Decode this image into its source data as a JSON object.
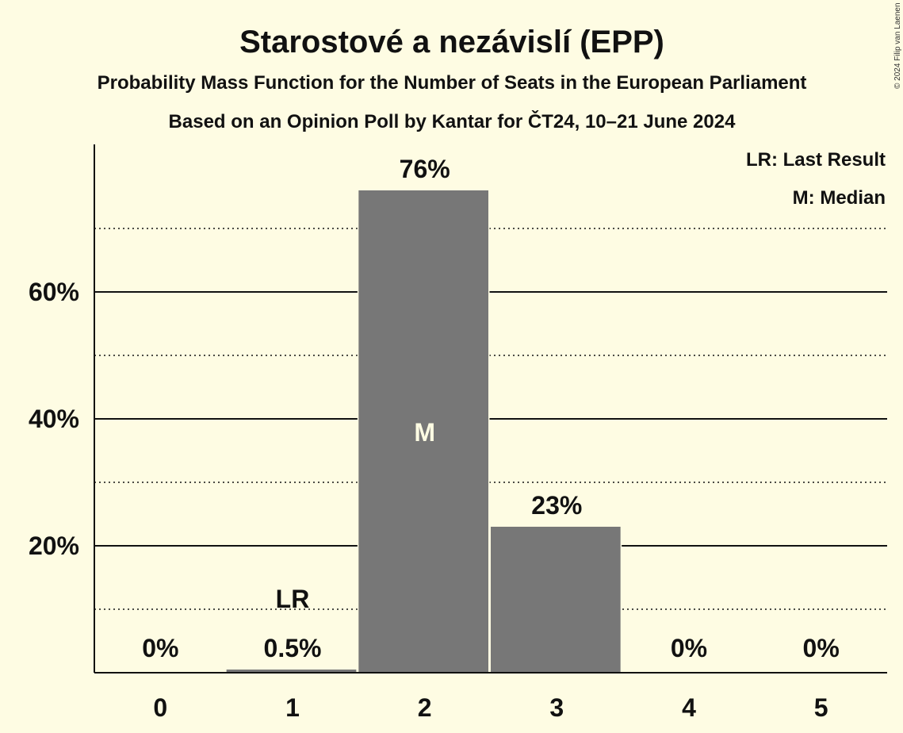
{
  "title": "Starostové a nezávislí (EPP)",
  "subtitle1": "Probability Mass Function for the Number of Seats in the European Parliament",
  "subtitle2": "Based on an Opinion Poll by Kantar for ČT24, 10–21 June 2024",
  "copyright": "© 2024 Filip van Laenen",
  "legend": {
    "last_result": "LR: Last Result",
    "median": "M: Median"
  },
  "colors": {
    "background": "#fefce3",
    "bar": "#777777",
    "text": "#111111",
    "median_marker": "#fefce3"
  },
  "chart_data": {
    "type": "bar",
    "categories": [
      "0",
      "1",
      "2",
      "3",
      "4",
      "5"
    ],
    "values": [
      0,
      0.5,
      76,
      23,
      0,
      0
    ],
    "data_labels": [
      "0%",
      "0.5%",
      "76%",
      "23%",
      "0%",
      "0%"
    ],
    "ylim": [
      0,
      83
    ],
    "yticks": [
      20,
      40,
      60
    ],
    "ytick_labels": [
      "20%",
      "40%",
      "60%"
    ],
    "minor_gridlines": [
      10,
      30,
      50,
      70
    ],
    "last_result_category": "1",
    "last_result_label": "LR",
    "median_category": "2",
    "median_label": "M",
    "xlabel": "",
    "ylabel": ""
  }
}
